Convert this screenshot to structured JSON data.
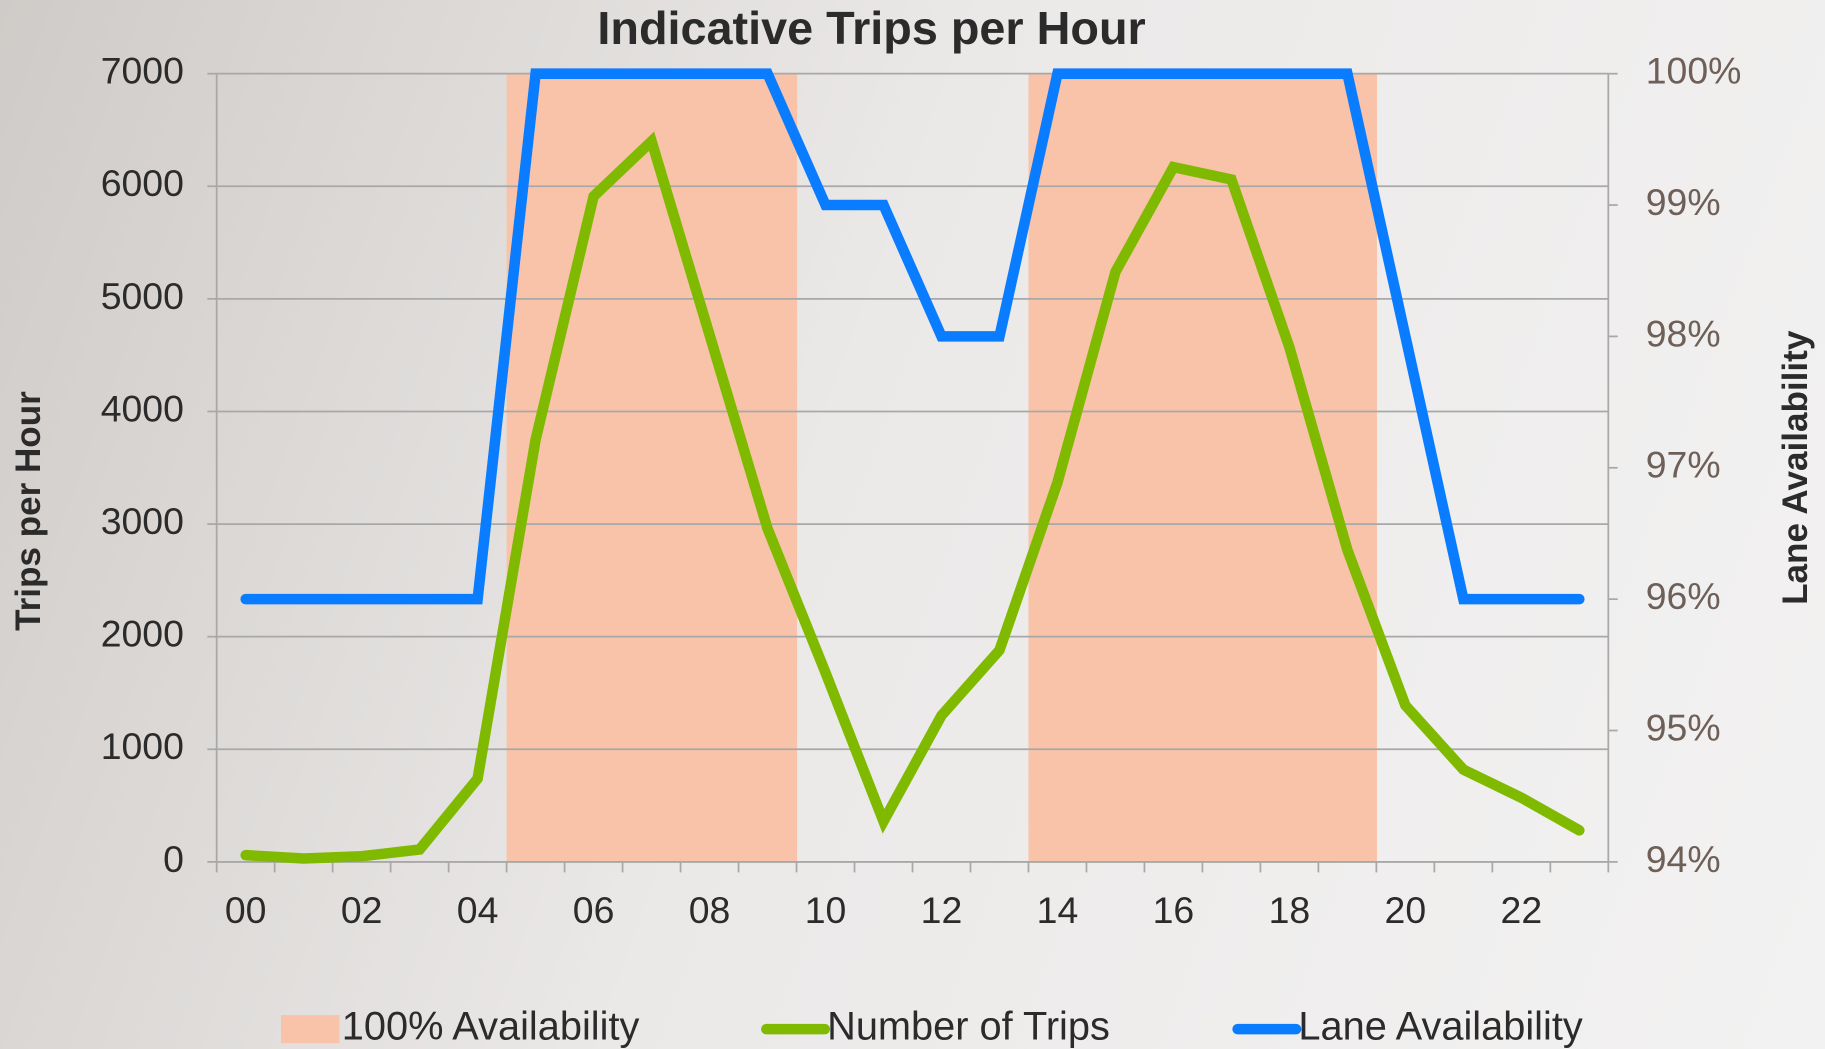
{
  "chart_data": {
    "type": "line",
    "title": "Indicative Trips per Hour",
    "y_label": "Trips per Hour",
    "y2_label": "Lane Availability",
    "categories": [
      "00",
      null,
      "02",
      null,
      "04",
      null,
      "06",
      null,
      "08",
      null,
      "10",
      null,
      "12",
      null,
      "14",
      null,
      "16",
      null,
      "18",
      null,
      "20",
      null,
      "22",
      null
    ],
    "series": [
      {
        "name": "100% Availability",
        "type": "bar",
        "axis": "y2",
        "color": "#f8c3a8",
        "values": [
          null,
          null,
          null,
          null,
          null,
          100,
          100,
          100,
          100,
          100,
          null,
          null,
          null,
          null,
          100,
          100,
          100,
          100,
          100,
          100,
          null,
          null,
          null,
          null
        ]
      },
      {
        "name": "Number of Trips",
        "type": "line",
        "color": "#7fba00",
        "values": [
          60,
          30,
          50,
          110,
          740,
          3750,
          5910,
          6400,
          4680,
          2960,
          1680,
          360,
          1300,
          1880,
          3370,
          5240,
          6170,
          6060,
          4570,
          2770,
          1390,
          820,
          570,
          280
        ]
      },
      {
        "name": "Lane Availability",
        "type": "line",
        "axis": "y2",
        "color": "#0a7cff",
        "values": [
          96,
          96,
          96,
          96,
          96,
          100,
          100,
          100,
          100,
          100,
          99,
          99,
          98,
          98,
          100,
          100,
          100,
          100,
          100,
          100,
          98,
          96,
          96,
          96
        ]
      }
    ],
    "ylim": [
      0,
      7000
    ],
    "yticks": [
      0,
      1000,
      2000,
      3000,
      4000,
      5000,
      6000,
      7000
    ],
    "y2lim": [
      94,
      100
    ],
    "y2ticks": [
      {
        "value": 94,
        "label": "94%"
      },
      {
        "value": 95,
        "label": "95%"
      },
      {
        "value": 96,
        "label": "96%"
      },
      {
        "value": 97,
        "label": "97%"
      },
      {
        "value": 98,
        "label": "98%"
      },
      {
        "value": 99,
        "label": "99%"
      },
      {
        "value": 100,
        "label": "100%"
      }
    ],
    "grid": true,
    "legend": "bottom"
  }
}
